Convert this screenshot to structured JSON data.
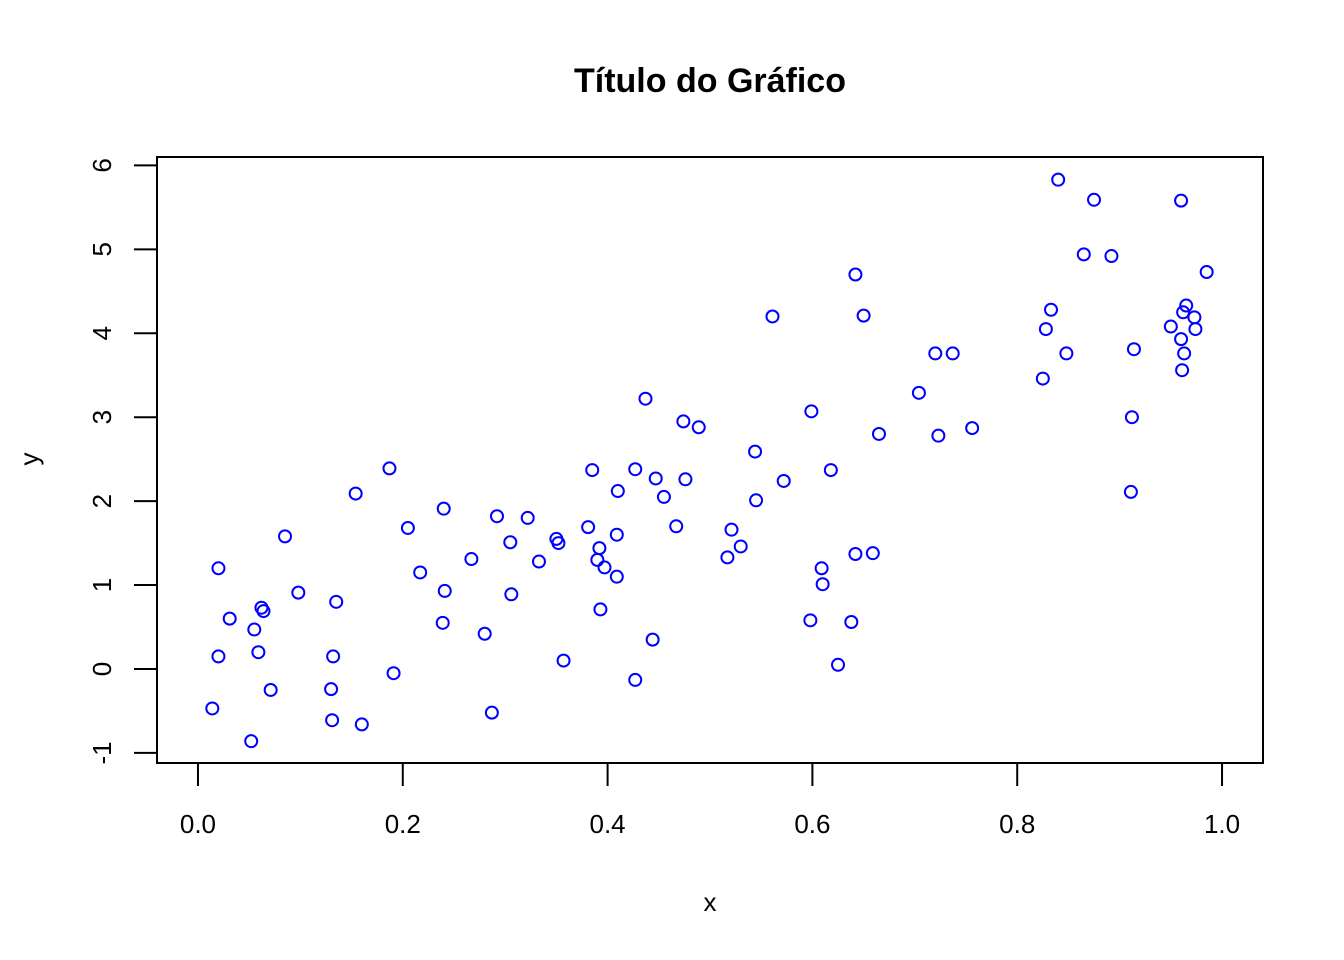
{
  "chart_data": {
    "type": "scatter",
    "title": "Título do Gráfico",
    "xlabel": "x",
    "ylabel": "y",
    "xlim": [
      -0.04,
      1.04
    ],
    "ylim": [
      -1.12,
      6.1
    ],
    "x_ticks": [
      0.0,
      0.2,
      0.4,
      0.6,
      0.8,
      1.0
    ],
    "x_tick_labels": [
      "0.0",
      "0.2",
      "0.4",
      "0.6",
      "0.8",
      "1.0"
    ],
    "y_ticks": [
      -1,
      0,
      1,
      2,
      3,
      4,
      5,
      6
    ],
    "y_tick_labels": [
      "-1",
      "0",
      "1",
      "2",
      "3",
      "4",
      "5",
      "6"
    ],
    "grid": false,
    "legend": "none",
    "marker": "open-circle",
    "marker_color": "#0000ff",
    "series": [
      {
        "points": [
          [
            0.014,
            -0.47
          ],
          [
            0.02,
            0.15
          ],
          [
            0.02,
            1.2
          ],
          [
            0.031,
            0.6
          ],
          [
            0.052,
            -0.86
          ],
          [
            0.055,
            0.47
          ],
          [
            0.059,
            0.2
          ],
          [
            0.062,
            0.73
          ],
          [
            0.064,
            0.69
          ],
          [
            0.071,
            -0.25
          ],
          [
            0.085,
            1.58
          ],
          [
            0.098,
            0.91
          ],
          [
            0.13,
            -0.24
          ],
          [
            0.131,
            -0.61
          ],
          [
            0.132,
            0.15
          ],
          [
            0.135,
            0.8
          ],
          [
            0.154,
            2.09
          ],
          [
            0.16,
            -0.66
          ],
          [
            0.187,
            2.39
          ],
          [
            0.191,
            -0.05
          ],
          [
            0.205,
            1.68
          ],
          [
            0.217,
            1.15
          ],
          [
            0.239,
            0.55
          ],
          [
            0.24,
            1.91
          ],
          [
            0.241,
            0.93
          ],
          [
            0.267,
            1.31
          ],
          [
            0.28,
            0.42
          ],
          [
            0.287,
            -0.52
          ],
          [
            0.292,
            1.82
          ],
          [
            0.305,
            1.51
          ],
          [
            0.306,
            0.89
          ],
          [
            0.322,
            1.8
          ],
          [
            0.333,
            1.28
          ],
          [
            0.35,
            1.55
          ],
          [
            0.352,
            1.5
          ],
          [
            0.357,
            0.1
          ],
          [
            0.381,
            1.69
          ],
          [
            0.385,
            2.37
          ],
          [
            0.39,
            1.3
          ],
          [
            0.392,
            1.44
          ],
          [
            0.393,
            0.71
          ],
          [
            0.397,
            1.21
          ],
          [
            0.409,
            1.1
          ],
          [
            0.409,
            1.6
          ],
          [
            0.41,
            2.12
          ],
          [
            0.427,
            2.38
          ],
          [
            0.427,
            -0.13
          ],
          [
            0.437,
            3.22
          ],
          [
            0.444,
            0.35
          ],
          [
            0.447,
            2.27
          ],
          [
            0.455,
            2.05
          ],
          [
            0.467,
            1.7
          ],
          [
            0.474,
            2.95
          ],
          [
            0.476,
            2.26
          ],
          [
            0.489,
            2.88
          ],
          [
            0.517,
            1.33
          ],
          [
            0.521,
            1.66
          ],
          [
            0.53,
            1.46
          ],
          [
            0.544,
            2.59
          ],
          [
            0.545,
            2.01
          ],
          [
            0.561,
            4.2
          ],
          [
            0.572,
            2.24
          ],
          [
            0.598,
            0.58
          ],
          [
            0.599,
            3.07
          ],
          [
            0.609,
            1.2
          ],
          [
            0.61,
            1.01
          ],
          [
            0.618,
            2.37
          ],
          [
            0.625,
            0.05
          ],
          [
            0.638,
            0.56
          ],
          [
            0.642,
            1.37
          ],
          [
            0.642,
            4.7
          ],
          [
            0.65,
            4.21
          ],
          [
            0.659,
            1.38
          ],
          [
            0.665,
            2.8
          ],
          [
            0.704,
            3.29
          ],
          [
            0.72,
            3.76
          ],
          [
            0.723,
            2.78
          ],
          [
            0.737,
            3.76
          ],
          [
            0.756,
            2.87
          ],
          [
            0.825,
            3.46
          ],
          [
            0.828,
            4.05
          ],
          [
            0.833,
            4.28
          ],
          [
            0.84,
            5.83
          ],
          [
            0.848,
            3.76
          ],
          [
            0.865,
            4.94
          ],
          [
            0.875,
            5.59
          ],
          [
            0.892,
            4.92
          ],
          [
            0.911,
            2.11
          ],
          [
            0.912,
            3.0
          ],
          [
            0.914,
            3.81
          ],
          [
            0.95,
            4.08
          ],
          [
            0.96,
            3.93
          ],
          [
            0.96,
            5.58
          ],
          [
            0.961,
            3.56
          ],
          [
            0.962,
            4.25
          ],
          [
            0.963,
            3.76
          ],
          [
            0.965,
            4.33
          ],
          [
            0.973,
            4.19
          ],
          [
            0.974,
            4.05
          ],
          [
            0.985,
            4.73
          ]
        ]
      }
    ]
  }
}
